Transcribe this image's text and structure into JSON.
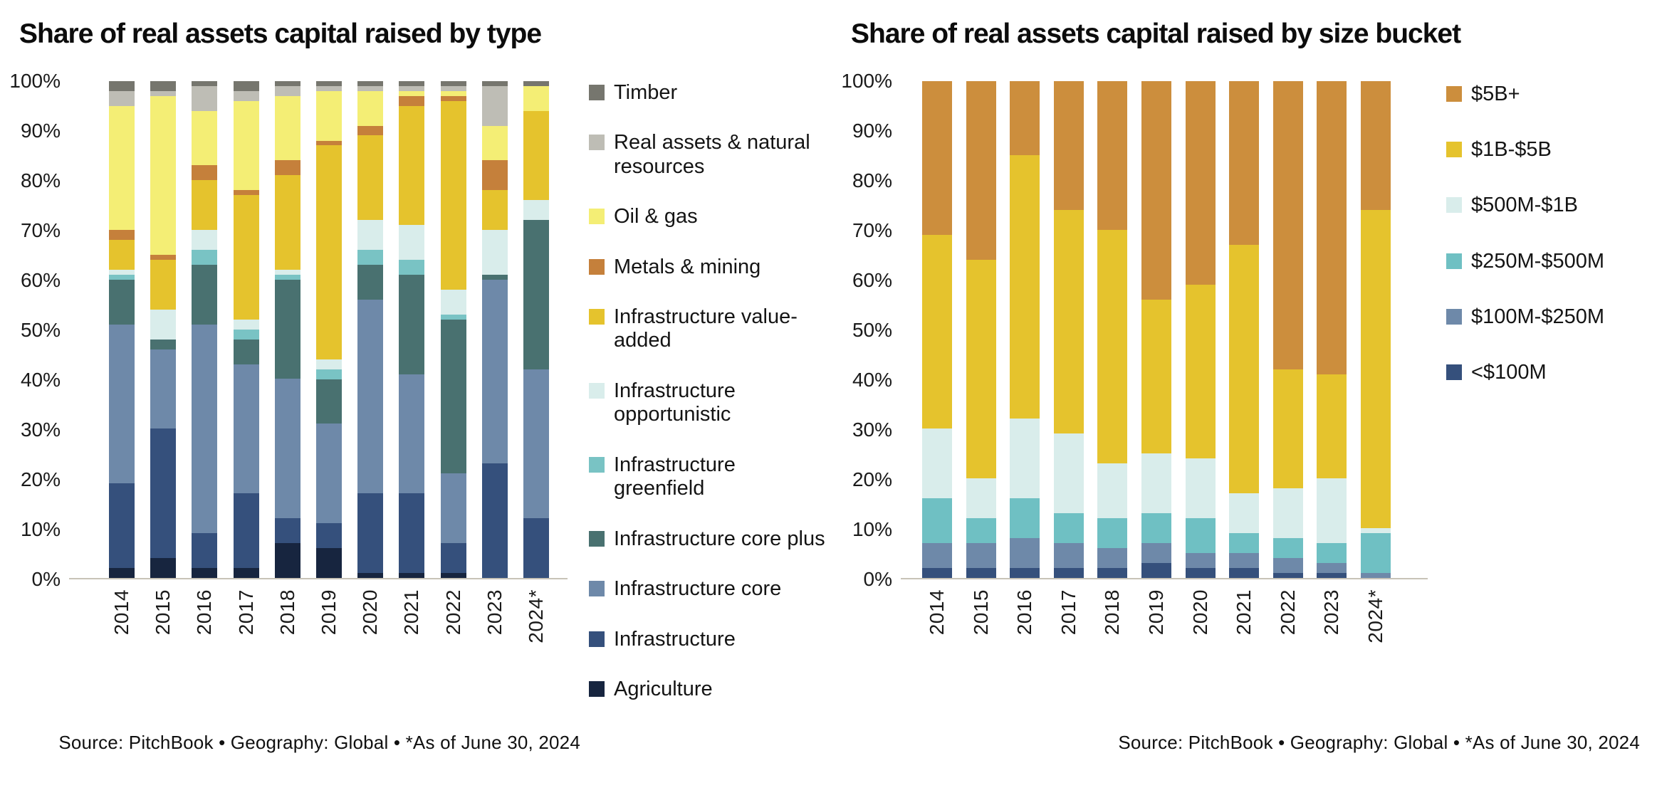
{
  "page_background": "#ffffff",
  "axis_line_color": "#c8c3b7",
  "chart_data": [
    {
      "type": "bar",
      "stacked": true,
      "percent": true,
      "title": "Share of real assets capital raised by type",
      "source": "Source: PitchBook  •  Geography: Global  •  *As of June 30, 2024",
      "legend_position": "right",
      "grid": false,
      "ylim": [
        0,
        100
      ],
      "y_ticks": [
        "0%",
        "10%",
        "20%",
        "30%",
        "40%",
        "50%",
        "60%",
        "70%",
        "80%",
        "90%",
        "100%"
      ],
      "categories": [
        "2014",
        "2015",
        "2016",
        "2017",
        "2018",
        "2019",
        "2020",
        "2021",
        "2022",
        "2023",
        "2024*"
      ],
      "series": [
        {
          "name": "Timber",
          "color": "#76766e",
          "values": [
            2,
            2,
            1,
            2,
            1,
            1,
            1,
            1,
            1,
            1,
            1
          ]
        },
        {
          "name": "Real assets & natural resources",
          "color": "#bebdb5",
          "values": [
            3,
            1,
            5,
            2,
            2,
            1,
            1,
            1,
            1,
            8,
            0
          ]
        },
        {
          "name": "Oil & gas",
          "color": "#f4ee75",
          "values": [
            25,
            32,
            11,
            18,
            13,
            10,
            7,
            1,
            1,
            7,
            5
          ]
        },
        {
          "name": "Metals & mining",
          "color": "#c5803b",
          "values": [
            2,
            1,
            3,
            1,
            3,
            1,
            2,
            2,
            1,
            6,
            0
          ]
        },
        {
          "name": "Infrastructure value-added",
          "color": "#e5c32d",
          "values": [
            6,
            10,
            10,
            25,
            19,
            43,
            17,
            24,
            38,
            8,
            18
          ]
        },
        {
          "name": "Infrastructure opportunistic",
          "color": "#d9edeb",
          "values": [
            1,
            6,
            4,
            2,
            1,
            2,
            6,
            7,
            5,
            9,
            4
          ]
        },
        {
          "name": "Infrastructure greenfield",
          "color": "#79c3c4",
          "values": [
            1,
            0,
            3,
            2,
            1,
            2,
            3,
            3,
            1,
            0,
            0
          ]
        },
        {
          "name": "Infrastructure core plus",
          "color": "#497170",
          "values": [
            9,
            2,
            12,
            5,
            20,
            9,
            7,
            20,
            31,
            1,
            30
          ]
        },
        {
          "name": "Infrastructure core",
          "color": "#6e89a9",
          "values": [
            32,
            16,
            42,
            26,
            28,
            20,
            39,
            24,
            14,
            37,
            30
          ]
        },
        {
          "name": "Infrastructure",
          "color": "#35507c",
          "values": [
            17,
            26,
            7,
            15,
            5,
            5,
            16,
            16,
            6,
            23,
            12
          ]
        },
        {
          "name": "Agriculture",
          "color": "#17253f",
          "values": [
            2,
            4,
            2,
            2,
            7,
            6,
            1,
            1,
            1,
            0,
            0
          ]
        }
      ]
    },
    {
      "type": "bar",
      "stacked": true,
      "percent": true,
      "title": "Share of real assets capital raised by size bucket",
      "source": "Source: PitchBook  •  Geography: Global  •  *As of June 30, 2024",
      "legend_position": "right",
      "grid": false,
      "ylim": [
        0,
        100
      ],
      "y_ticks": [
        "0%",
        "10%",
        "20%",
        "30%",
        "40%",
        "50%",
        "60%",
        "70%",
        "80%",
        "90%",
        "100%"
      ],
      "categories": [
        "2014",
        "2015",
        "2016",
        "2017",
        "2018",
        "2019",
        "2020",
        "2021",
        "2022",
        "2023",
        "2024*"
      ],
      "series": [
        {
          "name": "$5B+",
          "color": "#cc8e3d",
          "values": [
            31,
            36,
            15,
            26,
            30,
            44,
            41,
            33,
            58,
            59,
            26
          ]
        },
        {
          "name": "$1B-$5B",
          "color": "#e5c32d",
          "values": [
            39,
            44,
            53,
            45,
            47,
            31,
            35,
            50,
            24,
            21,
            64
          ]
        },
        {
          "name": "$500M-$1B",
          "color": "#d9edeb",
          "values": [
            14,
            8,
            16,
            16,
            11,
            12,
            12,
            8,
            10,
            13,
            1
          ]
        },
        {
          "name": "$250M-$500M",
          "color": "#6fc0c3",
          "values": [
            9,
            5,
            8,
            6,
            6,
            6,
            7,
            4,
            4,
            4,
            8
          ]
        },
        {
          "name": "$100M-$250M",
          "color": "#6e89a9",
          "values": [
            5,
            5,
            6,
            5,
            4,
            4,
            3,
            3,
            3,
            2,
            1
          ]
        },
        {
          "name": "<$100M",
          "color": "#35507c",
          "values": [
            2,
            2,
            2,
            2,
            2,
            3,
            2,
            2,
            1,
            1,
            0
          ]
        }
      ]
    }
  ]
}
